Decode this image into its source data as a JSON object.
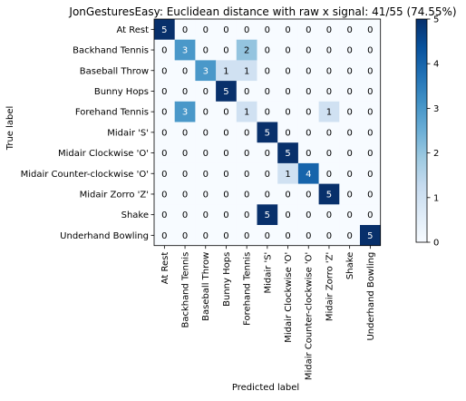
{
  "chart_data": {
    "type": "heatmap",
    "title": "JonGesturesEasy: Euclidean distance with raw x signal: 41/55 (74.55%)",
    "xlabel": "Predicted label",
    "ylabel": "True label",
    "labels": [
      "At Rest",
      "Backhand Tennis",
      "Baseball Throw",
      "Bunny Hops",
      "Forehand Tennis",
      "Midair 'S'",
      "Midair Clockwise 'O'",
      "Midair Counter-clockwise 'O'",
      "Midair Zorro 'Z'",
      "Shake",
      "Underhand Bowling"
    ],
    "matrix": [
      [
        5,
        0,
        0,
        0,
        0,
        0,
        0,
        0,
        0,
        0,
        0
      ],
      [
        0,
        3,
        0,
        0,
        2,
        0,
        0,
        0,
        0,
        0,
        0
      ],
      [
        0,
        0,
        3,
        1,
        1,
        0,
        0,
        0,
        0,
        0,
        0
      ],
      [
        0,
        0,
        0,
        5,
        0,
        0,
        0,
        0,
        0,
        0,
        0
      ],
      [
        0,
        3,
        0,
        0,
        1,
        0,
        0,
        0,
        1,
        0,
        0
      ],
      [
        0,
        0,
        0,
        0,
        0,
        5,
        0,
        0,
        0,
        0,
        0
      ],
      [
        0,
        0,
        0,
        0,
        0,
        0,
        5,
        0,
        0,
        0,
        0
      ],
      [
        0,
        0,
        0,
        0,
        0,
        0,
        1,
        4,
        0,
        0,
        0
      ],
      [
        0,
        0,
        0,
        0,
        0,
        0,
        0,
        0,
        5,
        0,
        0
      ],
      [
        0,
        0,
        0,
        0,
        0,
        5,
        0,
        0,
        0,
        0,
        0
      ],
      [
        0,
        0,
        0,
        0,
        0,
        0,
        0,
        0,
        0,
        0,
        5
      ]
    ],
    "colorbar": {
      "range": [
        0,
        5
      ],
      "ticks": [
        0,
        1,
        2,
        3,
        4,
        5
      ],
      "colormap": "Blues"
    }
  }
}
